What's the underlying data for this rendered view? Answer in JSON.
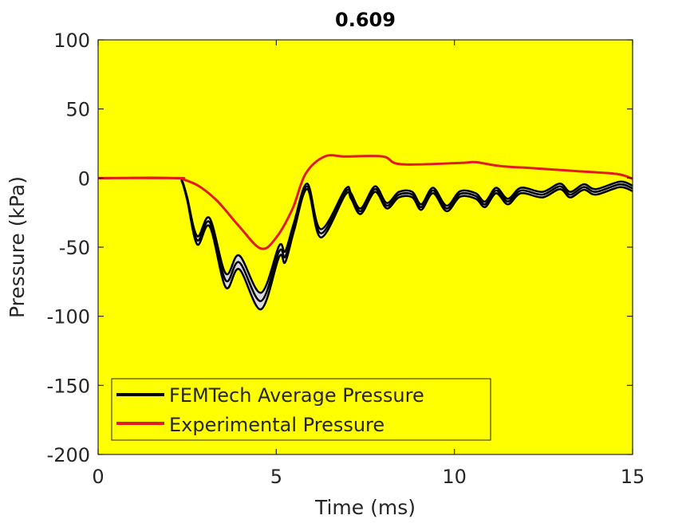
{
  "chart_data": {
    "type": "line",
    "title": "0.609",
    "xlabel": "Time (ms)",
    "ylabel": "Pressure (kPa)",
    "xlim": [
      0,
      15
    ],
    "ylim": [
      -200,
      100
    ],
    "xticks": [
      0,
      5,
      10,
      15
    ],
    "yticks": [
      100,
      50,
      0,
      -50,
      -100,
      -150,
      -200
    ],
    "grid": false,
    "legend_position": "bottom-left",
    "plot_background": "#ffff00",
    "series": [
      {
        "name": "FEMTech Average Pressure",
        "color": "#000000",
        "band_color": "#d9d9e0",
        "x": [
          0,
          2.2,
          2.35,
          2.5,
          2.78,
          3.13,
          3.58,
          3.96,
          4.57,
          5.08,
          5.25,
          5.5,
          5.87,
          6.25,
          6.94,
          7.1,
          7.37,
          7.77,
          8.1,
          8.44,
          8.82,
          9.07,
          9.4,
          9.78,
          10.16,
          10.6,
          10.86,
          11.17,
          11.5,
          11.87,
          12.47,
          12.96,
          13.25,
          13.63,
          13.97,
          14.64,
          15.0
        ],
        "y": [
          0,
          0,
          -2,
          -15,
          -45,
          -32,
          -74,
          -61,
          -89,
          -53,
          -57,
          -35,
          -6,
          -40,
          -10,
          -13,
          -24,
          -8,
          -20,
          -12,
          -12,
          -21,
          -9,
          -22,
          -11.5,
          -13,
          -19,
          -9,
          -17,
          -9,
          -12,
          -6,
          -12,
          -6.5,
          -10,
          -4.6,
          -7.5
        ],
        "band_halfwidth": [
          0,
          0,
          0.5,
          1,
          3,
          3,
          5,
          5,
          6,
          4,
          4,
          3,
          2,
          3,
          2,
          2,
          2,
          2,
          2,
          2,
          2,
          2,
          2,
          2,
          2,
          2,
          2,
          2,
          2,
          2,
          2,
          2,
          2,
          2,
          2,
          2,
          2
        ]
      },
      {
        "name": "Experimental Pressure",
        "color": "#e31a1c",
        "x": [
          0,
          2.2,
          2.4,
          2.84,
          3.36,
          3.96,
          4.57,
          5.0,
          5.46,
          5.82,
          6.36,
          6.94,
          7.99,
          8.5,
          10.2,
          10.6,
          11.28,
          12.3,
          13.43,
          14.55,
          15.0
        ],
        "y": [
          0,
          0,
          -1,
          -6,
          -17,
          -35,
          -51,
          -43,
          -22,
          3,
          15.6,
          15.6,
          15.6,
          10,
          11,
          11.5,
          8.7,
          7,
          5,
          3,
          -0.5
        ]
      }
    ]
  }
}
